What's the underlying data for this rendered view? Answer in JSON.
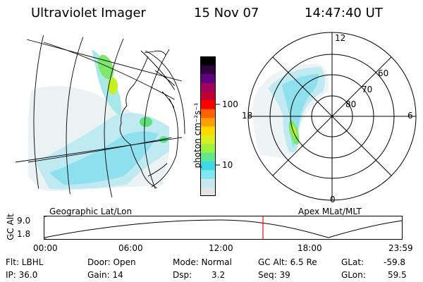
{
  "header": {
    "title": "Ultraviolet Imager",
    "date": "15 Nov 07",
    "time": "14:47:40 UT"
  },
  "geo_map": {
    "caption": "Geographic Lat/Lon",
    "coast_note": "ht"
  },
  "colorbar": {
    "unit": "photon cm⁻²s⁻¹",
    "ticks": [
      "100",
      "10"
    ],
    "tick_values": [
      100,
      10
    ],
    "colors": [
      "#e4e4e4",
      "#c8e8f0",
      "#80e8f0",
      "#40d8e8",
      "#60e890",
      "#a0f040",
      "#d8f020",
      "#ffd800",
      "#ffa000",
      "#ff6000",
      "#ff0000",
      "#c00030",
      "#a00060",
      "#600080",
      "#300040",
      "#000000"
    ]
  },
  "polar_map": {
    "caption": "Apex MLat/MLT",
    "mlt_labels": {
      "top": "12",
      "left": "18",
      "right": "6",
      "bottom": "0"
    },
    "mlat_labels": [
      "60",
      "70",
      "80"
    ]
  },
  "orbit_plot": {
    "ylabel": "GC Alt",
    "y_ticks": [
      "9.0",
      "1.8"
    ],
    "y_tick_values": [
      9.0,
      1.8
    ],
    "x_ticks": [
      "00:00",
      "06:00",
      "12:00",
      "18:00",
      "23:59"
    ],
    "current_time_marker": "14:47:40",
    "marker_color": "#ff0000"
  },
  "footer": {
    "flt": "Flt: LBHL",
    "ip": "IP: 36.0",
    "door": "Door: Open",
    "gain": "Gain: 14",
    "mode": "Mode: Normal",
    "dsp_label": "Dsp:",
    "dsp_value": "3.2",
    "gc_alt": "GC Alt: 6.5 Re",
    "seq": "Seq: 39",
    "glat_label": "GLat:",
    "glat_value": "-59.8",
    "glon_label": "GLon:",
    "glon_value": "59.5"
  }
}
